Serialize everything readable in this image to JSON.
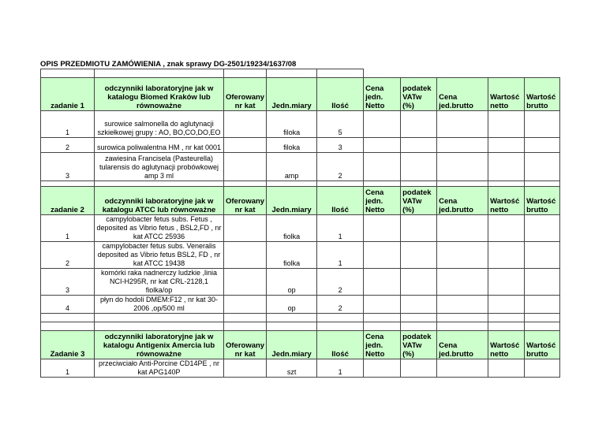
{
  "title": "OPIS PRZEDMIOTU ZAMÓWIENIA , znak sprawy DG-2501/19234/1637/08",
  "columns_right": [
    "Cena jedn. Netto",
    "podatek VATw (%)",
    "Cena jed.brutto",
    "Wartość netto",
    "Wartość brutto"
  ],
  "sections": [
    {
      "header": {
        "label": "zadanie 1",
        "description": "odczynniki laboratoryjne jak w katalogu Biomed Kraków lub równoważne",
        "catalog": "Oferowany nr kat",
        "unit": "Jedn.miary",
        "qty": "Ilość"
      },
      "rows": [
        {
          "no": "1",
          "name": "surowice salmonella do aglutynacji szkiełkowej grupy : AO, BO,CO,DO,EO",
          "unit": "filoka",
          "qty": "5"
        },
        {
          "no": "2",
          "name": "surowica poliwalentna HM , nr kat 0001",
          "unit": "filoka",
          "qty": "3"
        },
        {
          "no": "3",
          "name": "zawiesina Francisela (Pasteurella) tularensis do aglutynacji probówkowej amp 3 ml",
          "unit": "amp",
          "qty": "2"
        }
      ]
    },
    {
      "header": {
        "label": "zadanie 2",
        "description": "odczynniki laboratoryjne jak w katalogu ATCC lub równoważne",
        "catalog": "Oferowany nr kat",
        "unit": "Jedn.miary",
        "qty": "Ilość"
      },
      "rows": [
        {
          "no": "1",
          "name": "campylobacter fetus subs. Fetus , deposited as Vibrio fetus , BSL2,FD , nr kat ATCC 25936",
          "unit": "fiolka",
          "qty": "1"
        },
        {
          "no": "2",
          "name": "campylobacter fetus subs. Veneralis deposited as Vibrio fetus BSL2, FD , nr kat ATCC 19438",
          "unit": "fiolka",
          "qty": "1"
        },
        {
          "no": "3",
          "name": "komórki raka nadnerczy ludzkie ,linia NCI-H295R, nr kat CRL-2128,1 fiolka/op",
          "unit": "op",
          "qty": "2"
        },
        {
          "no": "4",
          "name": "płyn do hodoli DMEM:F12 , nr kat 30-2006 ,op/500 ml",
          "unit": "op",
          "qty": "2"
        }
      ]
    },
    {
      "header": {
        "label": "Zadanie 3",
        "description": "odczynniki laboratoryjne jak w katalogu Antigenix Amercia  lub równoważne",
        "catalog": "Oferowany nr kat",
        "unit": "Jedn.miary",
        "qty": "Ilość"
      },
      "rows": [
        {
          "no": "1",
          "name": "przeciwciało Anti-Porcine CD14PE , nr kat APG140P",
          "unit": "szt",
          "qty": "1"
        }
      ]
    }
  ]
}
